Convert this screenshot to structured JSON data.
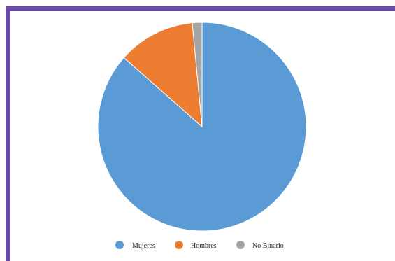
{
  "chart_data": {
    "type": "pie",
    "categories": [
      "Mujeres",
      "Hombres",
      "No Binario"
    ],
    "values": [
      86.5,
      12.0,
      1.5
    ],
    "colors": [
      "#5b9bd5",
      "#ed7d31",
      "#a5a5a5"
    ],
    "legend_position": "bottom",
    "start_angle_deg": 0,
    "direction": "clockwise"
  },
  "theme": {
    "border_color": "#6a4aa8",
    "background": "#ffffff"
  }
}
